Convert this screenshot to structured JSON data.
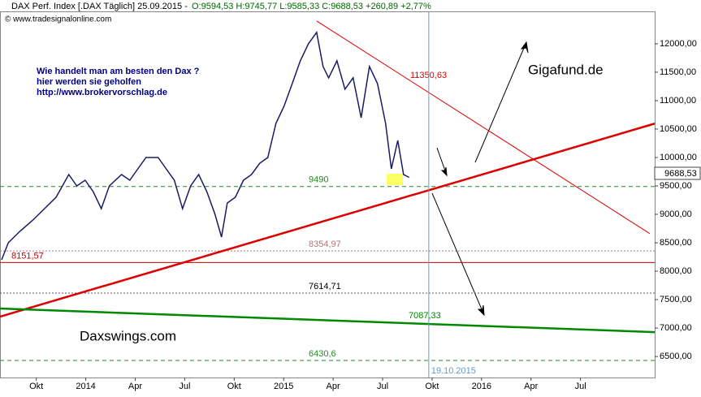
{
  "chart_data": {
    "type": "line",
    "title": "DAX Perf. Index [.DAX  Täglich] 25.09.2015 -",
    "subtitle": "O:9594,53 H:9745,77 L:9585,33 C:9688,53 +260,89 +2,77%",
    "source": "© www.tradesignalonline.com",
    "last_price_label": "9688,53",
    "annotations": [
      "Wie handelt man am besten  den Dax ?",
      "hier werden sie geholfen",
      "http://www.brokervorschlag.de",
      "Gigafund.de",
      "Daxswings.com"
    ],
    "x": [
      -2.1,
      -1.7,
      -1,
      -0.2,
      0.5,
      1.2,
      1.97,
      2.46,
      2.96,
      3.45,
      3.94,
      4.43,
      5.17,
      5.67,
      6.16,
      6.65,
      7.39,
      7.88,
      8.37,
      8.87,
      9.36,
      9.85,
      10.34,
      10.84,
      11.23,
      11.58,
      12.07,
      12.56,
      13.05,
      13.55,
      14.04,
      14.53,
      15.02,
      15.52,
      16.01,
      16.5,
      17,
      17.39,
      17.73,
      18.23,
      18.72,
      19.21,
      19.7,
      20.2,
      20.69,
      21.18,
      21.53,
      21.92,
      22.27,
      22.61
    ],
    "series": [
      {
        "color": "#1a1a66",
        "values": [
          8200,
          8500,
          8700,
          8900,
          9100,
          9300,
          9700,
          9500,
          9600,
          9400,
          9100,
          9500,
          9700,
          9600,
          9800,
          10000,
          10000,
          9800,
          9600,
          9100,
          9500,
          9700,
          9400,
          9000,
          8600,
          9200,
          9300,
          9600,
          9700,
          9900,
          10000,
          10600,
          10900,
          11300,
          11700,
          12000,
          12200,
          11600,
          11400,
          11700,
          11200,
          11400,
          10700,
          11600,
          11300,
          10600,
          9800,
          10300,
          9700,
          9650
        ]
      }
    ],
    "levels": [
      {
        "value": 9490,
        "label": "9490",
        "color": "#228b22",
        "style": "dashed"
      },
      {
        "value": 8354.97,
        "label": "8354,97",
        "color": "#aa7777",
        "style": "dotted"
      },
      {
        "value": 8151.57,
        "label": "8151,57",
        "color": "#cc0000",
        "style": "solid"
      },
      {
        "value": 7614.71,
        "label": "7614,71",
        "color": "#555555",
        "style": "dotted"
      },
      {
        "value": 6430.6,
        "label": "6430,6",
        "color": "#228b22",
        "style": "dashed"
      }
    ],
    "trendlines": [
      {
        "x": [
          -2.2,
          37.5
        ],
        "values": [
          7201,
          10596
        ],
        "color": "#dd0000",
        "width": 2.5
      },
      {
        "x": [
          17,
          37.2
        ],
        "values": [
          12401,
          8662
        ],
        "color": "#dd0000",
        "width": 1,
        "label": "11350,63"
      },
      {
        "x": [
          -2.2,
          37.5
        ],
        "values": [
          7344,
          6928
        ],
        "color": "#008800",
        "width": 2.5,
        "label": "7087,33"
      }
    ],
    "vline": {
      "x": 23.8,
      "label": "19.10.2015",
      "color": "#6699cc"
    },
    "xlim": [
      -2.2,
      37.5
    ],
    "xticks": [
      {
        "value": 0,
        "label": "Okt"
      },
      {
        "value": 3,
        "label": "2014"
      },
      {
        "value": 6,
        "label": "Apr"
      },
      {
        "value": 9,
        "label": "Jul"
      },
      {
        "value": 12,
        "label": "Okt"
      },
      {
        "value": 15,
        "label": "2015"
      },
      {
        "value": 18,
        "label": "Apr"
      },
      {
        "value": 21,
        "label": "Jul"
      },
      {
        "value": 24,
        "label": "Okt"
      },
      {
        "value": 27,
        "label": "2016"
      },
      {
        "value": 30,
        "label": "Apr"
      },
      {
        "value": 33,
        "label": "Jul"
      }
    ],
    "ylim": [
      6130,
      12570
    ],
    "yticks": [
      {
        "value": 6500,
        "label": "6500,00"
      },
      {
        "value": 7000,
        "label": "7000,00"
      },
      {
        "value": 7500,
        "label": "7500,00"
      },
      {
        "value": 8000,
        "label": "8000,00"
      },
      {
        "value": 8500,
        "label": "8500,00"
      },
      {
        "value": 9000,
        "label": "9000,00"
      },
      {
        "value": 9500,
        "label": "9500,00"
      },
      {
        "value": 10000,
        "label": "10000,00"
      },
      {
        "value": 10500,
        "label": "10500,00"
      },
      {
        "value": 11000,
        "label": "11000,00"
      },
      {
        "value": 11500,
        "label": "11500,00"
      },
      {
        "value": 12000,
        "label": "12000,00"
      }
    ]
  }
}
